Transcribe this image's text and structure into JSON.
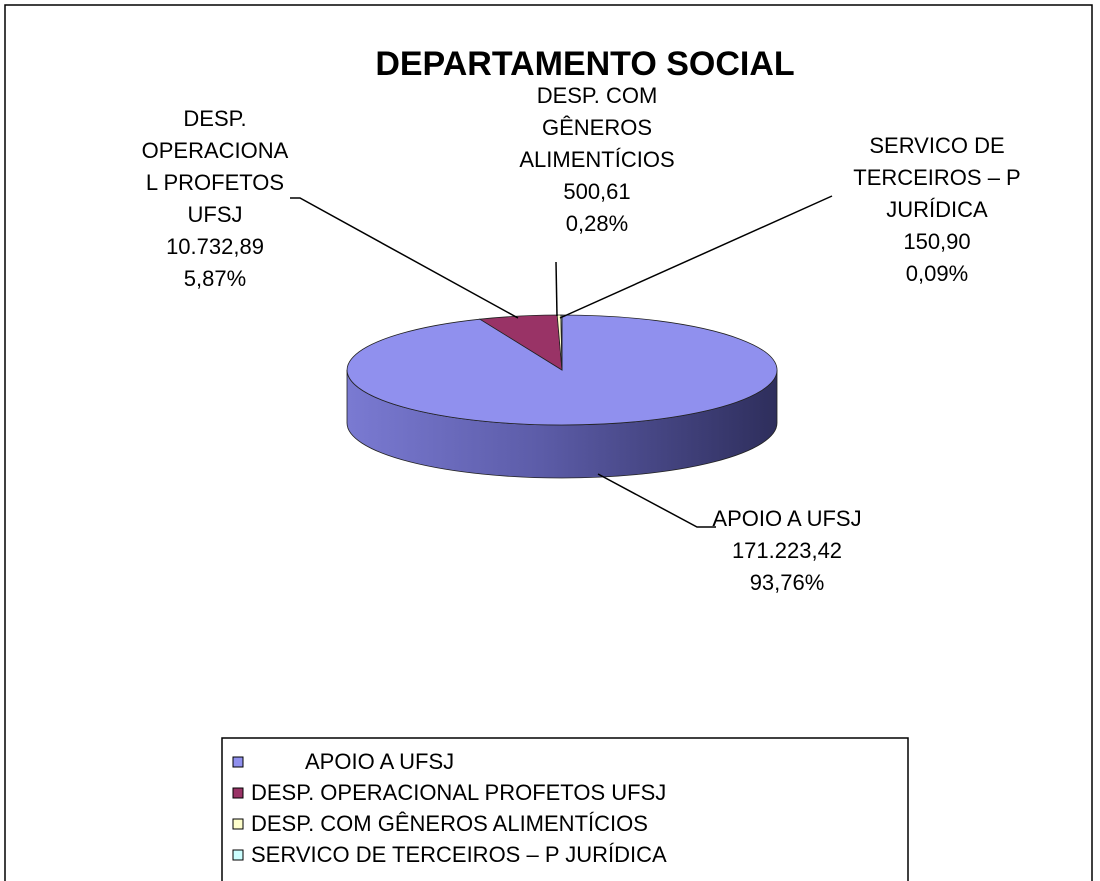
{
  "chart_data": {
    "type": "pie",
    "title": "DEPARTAMENTO SOCIAL",
    "categories": [
      "APOIO A UFSJ",
      "DESP. OPERACIONAL PROFETOS UFSJ",
      "DESP. COM GÊNEROS ALIMENTÍCIOS",
      "SERVICO DE TERCEIROS – P JURÍDICA"
    ],
    "values": [
      171223.42,
      10732.89,
      500.61,
      150.9
    ],
    "value_labels": [
      "171.223,42",
      "10.732,89",
      "500,61",
      "150,90"
    ],
    "percents": [
      93.76,
      5.87,
      0.28,
      0.09
    ],
    "percent_labels": [
      "93,76%",
      "5,87%",
      "0,28%",
      "0,09%"
    ],
    "colors": [
      "#9090ee",
      "#993366",
      "#ffffcc",
      "#ccffff"
    ],
    "legend": "bottom"
  }
}
